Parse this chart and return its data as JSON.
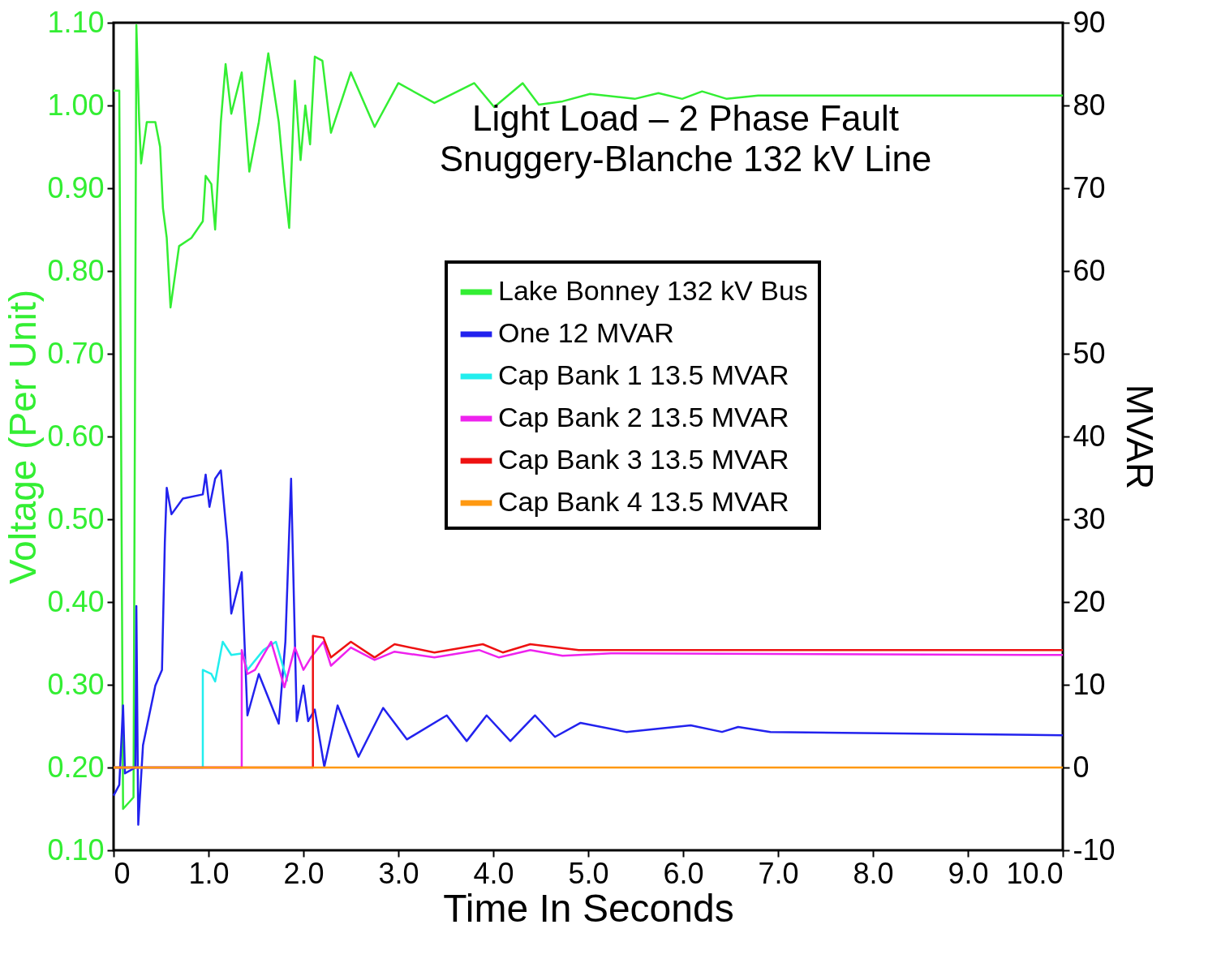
{
  "chart_data": {
    "type": "line",
    "title": "Light Load – 2 Phase Fault",
    "subtitle": "Snuggery-Blanche 132 kV Line",
    "xlabel": "Time In Seconds",
    "ylabel": "Voltage (Per Unit)",
    "y2label": "MVAR",
    "xlim": [
      0,
      10
    ],
    "xticks": [
      0,
      {
        "value": 1,
        "label": "1.0"
      },
      {
        "value": 2,
        "label": "2.0"
      },
      {
        "value": 3,
        "label": "3.0"
      },
      {
        "value": 4,
        "label": "4.0"
      },
      {
        "value": 5,
        "label": "5.0"
      },
      {
        "value": 6,
        "label": "6.0"
      },
      {
        "value": 7,
        "label": "7.0"
      },
      {
        "value": 8,
        "label": "8.0"
      },
      {
        "value": 9,
        "label": "9.0"
      },
      {
        "value": 10,
        "label": "10.0"
      }
    ],
    "ylim": [
      0.1,
      1.1
    ],
    "yticks": [
      {
        "value": 0.1,
        "label": "0.10"
      },
      {
        "value": 0.2,
        "label": "0.20"
      },
      {
        "value": 0.3,
        "label": "0.30"
      },
      {
        "value": 0.4,
        "label": "0.40"
      },
      {
        "value": 0.5,
        "label": "0.50"
      },
      {
        "value": 0.6,
        "label": "0.60"
      },
      {
        "value": 0.7,
        "label": "0.70"
      },
      {
        "value": 0.8,
        "label": "0.80"
      },
      {
        "value": 0.9,
        "label": "0.90"
      },
      {
        "value": 1.0,
        "label": "1.00"
      },
      {
        "value": 1.1,
        "label": "1.10"
      }
    ],
    "y2lim": [
      -10,
      90
    ],
    "y2ticks": [
      -10,
      0,
      10,
      20,
      30,
      40,
      50,
      60,
      70,
      80,
      90
    ],
    "grid": false,
    "legend": "top right",
    "marker": "none",
    "line_style": "solid",
    "series": [
      {
        "name": "Lake Bonney 132 kV Bus",
        "color": "#33ee33",
        "x": [
          0,
          0.06,
          0.1,
          0.21,
          0.24,
          0.27,
          0.29,
          0.35,
          0.44,
          0.49,
          0.52,
          0.56,
          0.6,
          0.69,
          0.82,
          0.94,
          0.97,
          1.03,
          1.07,
          1.13,
          1.18,
          1.24,
          1.35,
          1.43,
          1.53,
          1.63,
          1.74,
          1.8,
          1.85,
          1.91,
          1.97,
          2.02,
          2.07,
          2.12,
          2.2,
          2.29,
          2.5,
          2.75,
          3.0,
          3.38,
          3.8,
          4.01,
          4.31,
          4.48,
          4.73,
          5.02,
          5.49,
          5.74,
          5.99,
          6.2,
          6.46,
          6.79,
          10
        ],
        "values": [
          1.018,
          1.018,
          0.15,
          0.164,
          1.097,
          0.98,
          0.93,
          0.98,
          0.98,
          0.95,
          0.876,
          0.84,
          0.756,
          0.83,
          0.84,
          0.86,
          0.915,
          0.905,
          0.85,
          0.98,
          1.05,
          0.99,
          1.04,
          0.92,
          0.98,
          1.063,
          0.98,
          0.905,
          0.852,
          1.03,
          0.934,
          1.0,
          0.953,
          1.059,
          1.054,
          0.967,
          1.04,
          0.974,
          1.027,
          1.003,
          1.027,
          0.998,
          1.027,
          1.001,
          1.005,
          1.014,
          1.008,
          1.015,
          1.008,
          1.017,
          1.008,
          1.012,
          1.012
        ]
      },
      {
        "name": "One 12 MVAR",
        "color": "#2222ee",
        "axis": "y2",
        "x": [
          0,
          0.06,
          0.1,
          0.12,
          0.23,
          0.24,
          0.26,
          0.31,
          0.44,
          0.51,
          0.54,
          0.56,
          0.61,
          0.73,
          0.94,
          0.97,
          1.01,
          1.07,
          1.13,
          1.2,
          1.24,
          1.35,
          1.41,
          1.53,
          1.74,
          1.81,
          1.87,
          1.93,
          2.0,
          2.05,
          2.12,
          2.22,
          2.36,
          2.58,
          2.84,
          3.09,
          3.51,
          3.72,
          3.93,
          4.18,
          4.44,
          4.65,
          4.92,
          5.4,
          6.08,
          6.41,
          6.58,
          6.92,
          10
        ],
        "values": [
          -3.4,
          -2.1,
          7.5,
          -0.7,
          0,
          19.5,
          -6.9,
          2.7,
          9.9,
          11.8,
          27.2,
          33.8,
          30.6,
          32.5,
          33,
          35.4,
          31.5,
          34.9,
          35.9,
          27.2,
          18.6,
          23.6,
          6.3,
          11.3,
          5.3,
          15.2,
          34.9,
          5.6,
          9.9,
          5.6,
          7.0,
          0.1,
          7.5,
          1.3,
          7.2,
          3.4,
          6.3,
          3.2,
          6.3,
          3.2,
          6.3,
          3.7,
          5.4,
          4.3,
          5.1,
          4.3,
          4.9,
          4.3,
          3.9
        ]
      },
      {
        "name": "Cap Bank 1 13.5 MVAR",
        "color": "#22eeee",
        "axis": "y2",
        "x": [
          0,
          0.94,
          0.94,
          1.03,
          1.07,
          1.15,
          1.24,
          1.36,
          1.41,
          1.58,
          1.71,
          1.83
        ],
        "values": [
          0,
          0,
          11.8,
          11.3,
          10.4,
          15.2,
          13.6,
          13.8,
          11.8,
          14.2,
          15.2,
          10.4
        ]
      },
      {
        "name": "Cap Bank 2 13.5 MVAR",
        "color": "#ee22ee",
        "axis": "y2",
        "x": [
          0,
          1.35,
          1.35,
          1.41,
          1.49,
          1.66,
          1.8,
          1.91,
          2.0,
          2.08,
          2.21,
          2.29,
          2.5,
          2.75,
          2.96,
          3.38,
          3.85,
          4.06,
          4.39,
          4.73,
          5.24,
          10
        ],
        "values": [
          0,
          0,
          14.2,
          11.3,
          11.8,
          15.2,
          9.7,
          14.5,
          11.8,
          13.3,
          15.2,
          12.3,
          14.5,
          13.0,
          14.0,
          13.3,
          14.2,
          13.3,
          14.2,
          13.5,
          13.8,
          13.6
        ]
      },
      {
        "name": "Cap Bank 3 13.5 MVAR",
        "color": "#ee1111",
        "axis": "y2",
        "x": [
          0,
          2.1,
          2.1,
          2.21,
          2.29,
          2.5,
          2.75,
          2.96,
          3.38,
          3.89,
          4.1,
          4.39,
          4.9,
          10
        ],
        "values": [
          0,
          0,
          15.9,
          15.7,
          13.3,
          15.2,
          13.3,
          14.9,
          13.9,
          14.9,
          13.9,
          14.9,
          14.2,
          14.2
        ]
      },
      {
        "name": "Cap Bank 4 13.5 MVAR",
        "color": "#ff9911",
        "axis": "y2",
        "x": [
          0,
          10
        ],
        "values": [
          0,
          0
        ]
      }
    ]
  }
}
